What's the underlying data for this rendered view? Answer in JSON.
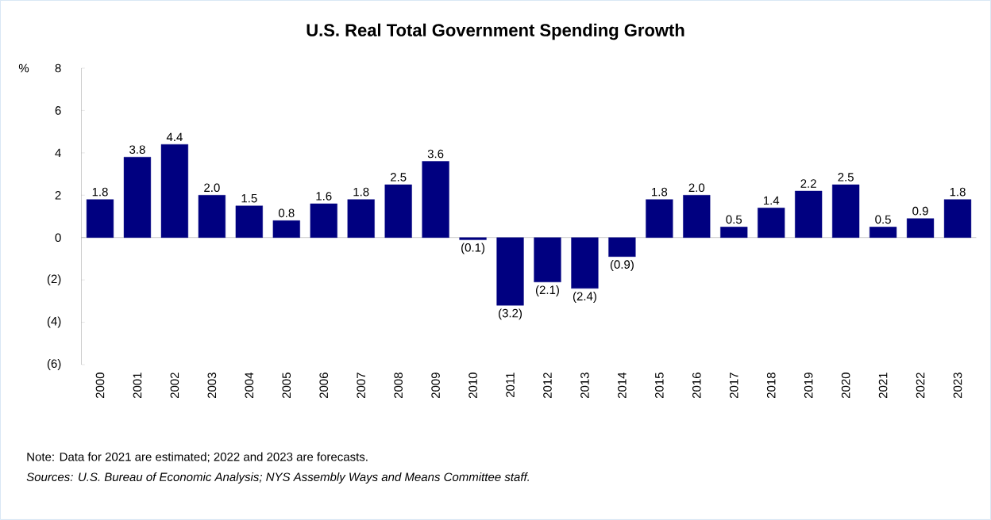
{
  "chart_data": {
    "type": "bar",
    "title": "U.S. Real Total Government Spending Growth",
    "ylabel": "%",
    "categories": [
      "2000",
      "2001",
      "2002",
      "2003",
      "2004",
      "2005",
      "2006",
      "2007",
      "2008",
      "2009",
      "2010",
      "2011",
      "2012",
      "2013",
      "2014",
      "2015",
      "2016",
      "2017",
      "2018",
      "2019",
      "2020",
      "2021",
      "2022",
      "2023"
    ],
    "values": [
      1.8,
      3.8,
      4.4,
      2.0,
      1.5,
      0.8,
      1.6,
      1.8,
      2.5,
      3.6,
      -0.1,
      -3.2,
      -2.1,
      -2.4,
      -0.9,
      1.8,
      2.0,
      0.5,
      1.4,
      2.2,
      2.5,
      0.5,
      0.9,
      1.8
    ],
    "value_labels": [
      "1.8",
      "3.8",
      "4.4",
      "2.0",
      "1.5",
      "0.8",
      "1.6",
      "1.8",
      "2.5",
      "3.6",
      "(0.1)",
      "(3.2)",
      "(2.1)",
      "(2.4)",
      "(0.9)",
      "1.8",
      "2.0",
      "0.5",
      "1.4",
      "2.2",
      "2.5",
      "0.5",
      "0.9",
      "1.8"
    ],
    "color": "#000080",
    "ylim": [
      -6,
      8
    ],
    "yticks": [
      {
        "value": -6,
        "label": "(6)"
      },
      {
        "value": -4,
        "label": "(4)"
      },
      {
        "value": -2,
        "label": "(2)"
      },
      0,
      2,
      4,
      6,
      8
    ],
    "annotations": [
      "Note: Data for 2021 are estimated; 2022 and 2023 are forecasts.",
      "Sources: U.S. Bureau of Economic Analysis; NYS Assembly Ways and Means Committee staff."
    ]
  }
}
